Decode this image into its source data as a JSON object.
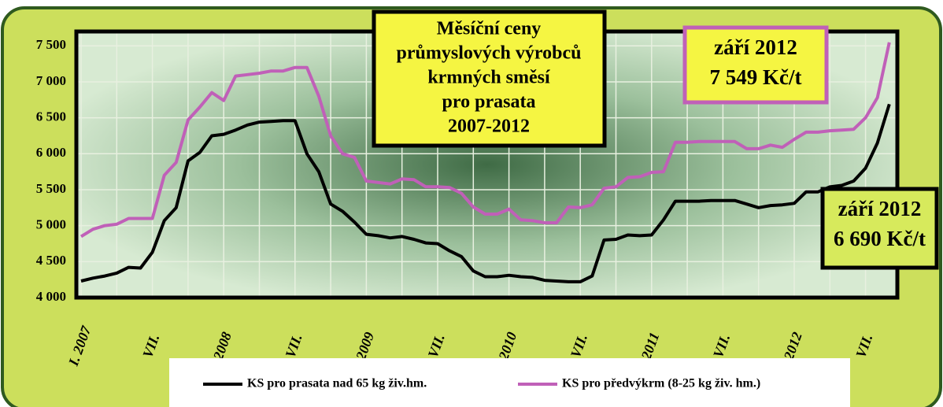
{
  "chart_data": {
    "type": "line",
    "title": [
      "Měsíční ceny",
      "průmyslových výrobců",
      "krmných směsí",
      "pro prasata",
      "2007-2012"
    ],
    "annotations": [
      [
        "září 2012",
        "7 549 Kč/t"
      ],
      [
        "září 2012",
        "6 690 Kč/t"
      ]
    ],
    "categories": [
      "I. 2007",
      null,
      null,
      null,
      null,
      null,
      "VII.",
      null,
      null,
      null,
      null,
      null,
      "2008",
      null,
      null,
      null,
      null,
      null,
      "VII.",
      null,
      null,
      null,
      null,
      null,
      "2009",
      null,
      null,
      null,
      null,
      null,
      "VII.",
      null,
      null,
      null,
      null,
      null,
      "2010",
      null,
      null,
      null,
      null,
      null,
      "VII.",
      null,
      null,
      null,
      null,
      null,
      "2011",
      null,
      null,
      null,
      null,
      null,
      "VII.",
      null,
      null,
      null,
      null,
      null,
      "2012",
      null,
      null,
      null,
      null,
      null,
      "VII.",
      null,
      null
    ],
    "series": [
      {
        "name": "KS pro prasata nad 65 kg živ.hm.",
        "color": "#000000",
        "values": [
          4230,
          4270,
          4300,
          4340,
          4420,
          4410,
          4630,
          5070,
          5250,
          5900,
          6020,
          6250,
          6270,
          6330,
          6400,
          6440,
          6450,
          6460,
          6460,
          6000,
          5750,
          5300,
          5200,
          5050,
          4880,
          4860,
          4830,
          4850,
          4810,
          4760,
          4750,
          4650,
          4570,
          4370,
          4290,
          4290,
          4310,
          4290,
          4280,
          4240,
          4230,
          4220,
          4220,
          4300,
          4800,
          4810,
          4870,
          4860,
          4870,
          5080,
          5340,
          5340,
          5340,
          5350,
          5350,
          5350,
          5300,
          5250,
          5280,
          5290,
          5310,
          5470,
          5470,
          5540,
          5560,
          5620,
          5800,
          6150,
          6690
        ]
      },
      {
        "name": "KS pro předvýkrm (8-25 kg živ. hm.)",
        "color": "#c060b8",
        "values": [
          4850,
          4950,
          5000,
          5020,
          5100,
          5100,
          5100,
          5700,
          5880,
          6470,
          6650,
          6850,
          6740,
          7080,
          7100,
          7120,
          7150,
          7150,
          7200,
          7200,
          6800,
          6250,
          6000,
          5950,
          5620,
          5600,
          5580,
          5650,
          5640,
          5540,
          5540,
          5530,
          5450,
          5260,
          5160,
          5160,
          5230,
          5080,
          5070,
          5040,
          5040,
          5260,
          5250,
          5290,
          5520,
          5540,
          5670,
          5680,
          5740,
          5750,
          6160,
          6160,
          6170,
          6170,
          6170,
          6170,
          6070,
          6070,
          6120,
          6090,
          6200,
          6300,
          6300,
          6320,
          6330,
          6340,
          6500,
          6780,
          7549
        ]
      }
    ],
    "ylim": [
      4000,
      7700
    ],
    "yticks": [
      {
        "value": 4000,
        "label": "4 000"
      },
      {
        "value": 4500,
        "label": "4 500"
      },
      {
        "value": 5000,
        "label": "5 000"
      },
      {
        "value": 5500,
        "label": "5 500"
      },
      {
        "value": 6000,
        "label": "6 000"
      },
      {
        "value": 6500,
        "label": "6 500"
      },
      {
        "value": 7000,
        "label": "7 000"
      },
      {
        "value": 7500,
        "label": "7 500"
      }
    ],
    "grid": true
  }
}
